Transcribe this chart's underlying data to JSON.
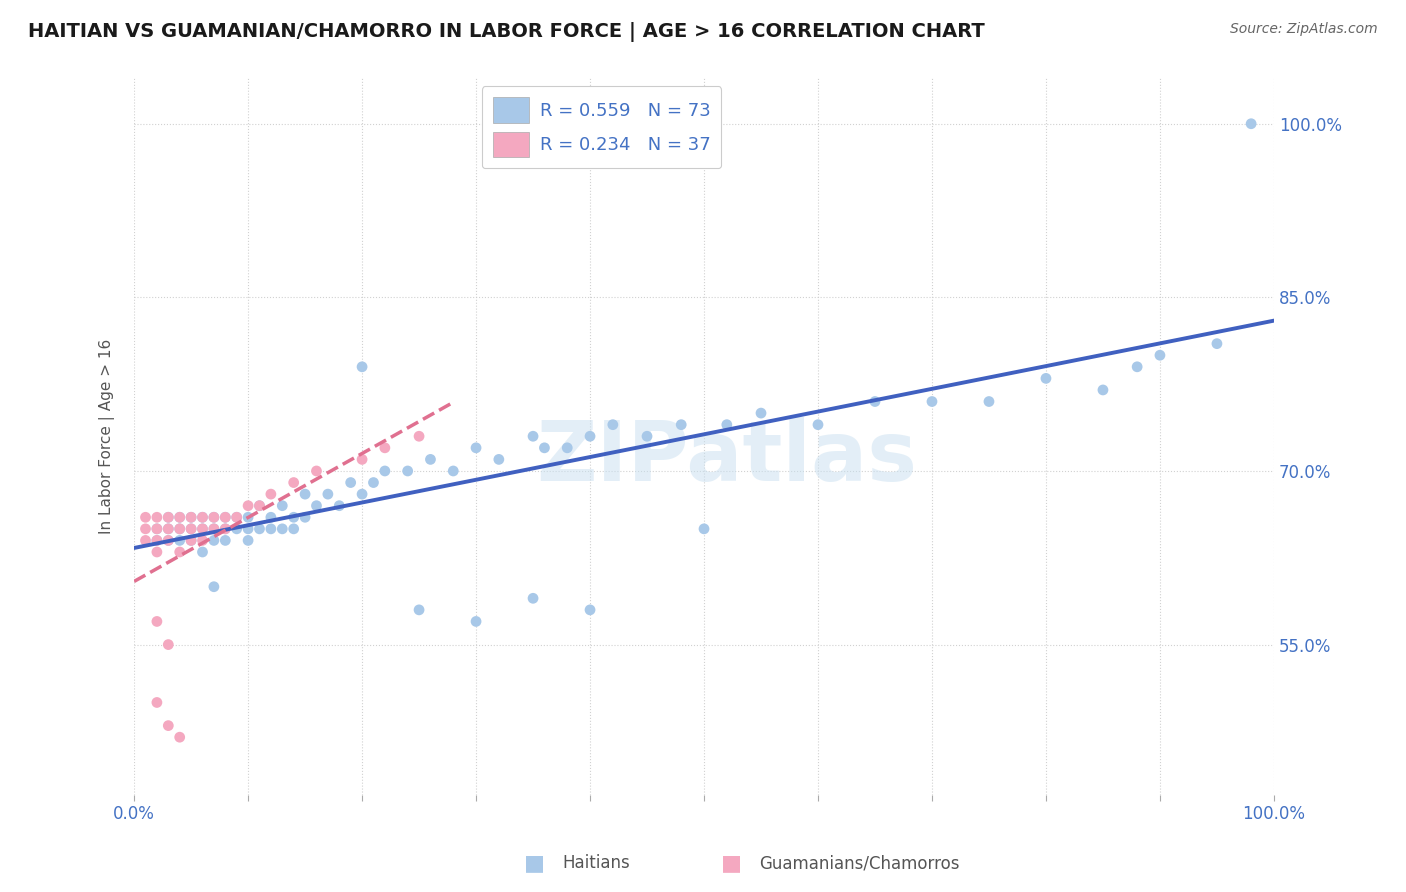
{
  "title": "HAITIAN VS GUAMANIAN/CHAMORRO IN LABOR FORCE | AGE > 16 CORRELATION CHART",
  "source": "Source: ZipAtlas.com",
  "ylabel": "In Labor Force | Age > 16",
  "xlim": [
    0.0,
    1.0
  ],
  "ylim": [
    0.42,
    1.04
  ],
  "legend_R1": "R = 0.559",
  "legend_N1": "N = 73",
  "legend_R2": "R = 0.234",
  "legend_N2": "N = 37",
  "color_haitians": "#a8c8e8",
  "color_guamanians": "#f4a8c0",
  "color_line_haitians": "#4060c0",
  "color_line_guamanians": "#e07090",
  "watermark_color": "#c8dff0",
  "label_haitians": "Haitians",
  "label_guamanians": "Guamanians/Chamorros",
  "right_yticks": [
    0.55,
    0.7,
    0.85,
    1.0
  ],
  "right_yticklabels": [
    "55.0%",
    "70.0%",
    "85.0%",
    "100.0%"
  ],
  "haitians_x": [
    0.02,
    0.02,
    0.03,
    0.03,
    0.03,
    0.04,
    0.04,
    0.04,
    0.05,
    0.05,
    0.05,
    0.06,
    0.06,
    0.06,
    0.07,
    0.07,
    0.07,
    0.08,
    0.08,
    0.08,
    0.09,
    0.09,
    0.1,
    0.1,
    0.1,
    0.11,
    0.11,
    0.12,
    0.12,
    0.13,
    0.13,
    0.14,
    0.14,
    0.15,
    0.15,
    0.16,
    0.17,
    0.18,
    0.19,
    0.2,
    0.21,
    0.22,
    0.24,
    0.26,
    0.28,
    0.3,
    0.32,
    0.35,
    0.36,
    0.38,
    0.4,
    0.42,
    0.45,
    0.48,
    0.5,
    0.52,
    0.55,
    0.6,
    0.65,
    0.7,
    0.75,
    0.8,
    0.85,
    0.88,
    0.9,
    0.95,
    0.98,
    0.07,
    0.2,
    0.35,
    0.4,
    0.25,
    0.3
  ],
  "haitians_y": [
    0.65,
    0.64,
    0.65,
    0.64,
    0.66,
    0.64,
    0.65,
    0.66,
    0.65,
    0.64,
    0.66,
    0.65,
    0.63,
    0.66,
    0.65,
    0.64,
    0.66,
    0.65,
    0.64,
    0.66,
    0.65,
    0.66,
    0.65,
    0.66,
    0.64,
    0.65,
    0.67,
    0.66,
    0.65,
    0.67,
    0.65,
    0.66,
    0.65,
    0.68,
    0.66,
    0.67,
    0.68,
    0.67,
    0.69,
    0.68,
    0.69,
    0.7,
    0.7,
    0.71,
    0.7,
    0.72,
    0.71,
    0.73,
    0.72,
    0.72,
    0.73,
    0.74,
    0.73,
    0.74,
    0.65,
    0.74,
    0.75,
    0.74,
    0.76,
    0.76,
    0.76,
    0.78,
    0.77,
    0.79,
    0.8,
    0.81,
    1.0,
    0.6,
    0.79,
    0.59,
    0.58,
    0.58,
    0.57
  ],
  "guamanians_x": [
    0.01,
    0.01,
    0.01,
    0.02,
    0.02,
    0.02,
    0.02,
    0.03,
    0.03,
    0.03,
    0.04,
    0.04,
    0.04,
    0.05,
    0.05,
    0.05,
    0.06,
    0.06,
    0.06,
    0.07,
    0.07,
    0.08,
    0.08,
    0.09,
    0.1,
    0.11,
    0.12,
    0.14,
    0.16,
    0.2,
    0.22,
    0.25,
    0.02,
    0.03,
    0.02,
    0.03,
    0.04
  ],
  "guamanians_y": [
    0.64,
    0.65,
    0.66,
    0.63,
    0.64,
    0.65,
    0.66,
    0.64,
    0.65,
    0.66,
    0.63,
    0.65,
    0.66,
    0.64,
    0.65,
    0.66,
    0.64,
    0.65,
    0.66,
    0.65,
    0.66,
    0.65,
    0.66,
    0.66,
    0.67,
    0.67,
    0.68,
    0.69,
    0.7,
    0.71,
    0.72,
    0.73,
    0.57,
    0.55,
    0.5,
    0.48,
    0.47
  ]
}
